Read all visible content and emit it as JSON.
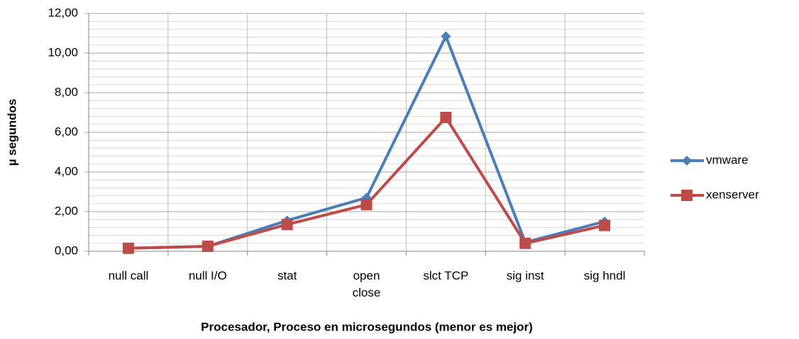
{
  "chart_data": {
    "type": "line",
    "x_label": "Procesador, Proceso en microsegundos (menor es mejor)",
    "y_label": "µ segundos",
    "categories": [
      "null call",
      "null I/O",
      "stat",
      "open\nclose",
      "slct TCP",
      "sig inst",
      "sig hndl"
    ],
    "series": [
      {
        "name": "vmware",
        "color": "#4a7ebb",
        "marker": "diamond",
        "values": [
          0.15,
          0.25,
          1.55,
          2.7,
          10.85,
          0.45,
          1.5
        ]
      },
      {
        "name": "xenserver",
        "color": "#be4b48",
        "marker": "square",
        "values": [
          0.15,
          0.25,
          1.35,
          2.35,
          6.75,
          0.4,
          1.3
        ]
      }
    ],
    "ylim": [
      0,
      12
    ],
    "yticks": [
      {
        "value": 0,
        "label": "0,00"
      },
      {
        "value": 2,
        "label": "2,00"
      },
      {
        "value": 4,
        "label": "4,00"
      },
      {
        "value": 6,
        "label": "6,00"
      },
      {
        "value": 8,
        "label": "8,00"
      },
      {
        "value": 10,
        "label": "10,00"
      },
      {
        "value": 12,
        "label": "12,00"
      }
    ],
    "grid": true,
    "minor_grid_divisions": 5,
    "legend": "right"
  }
}
